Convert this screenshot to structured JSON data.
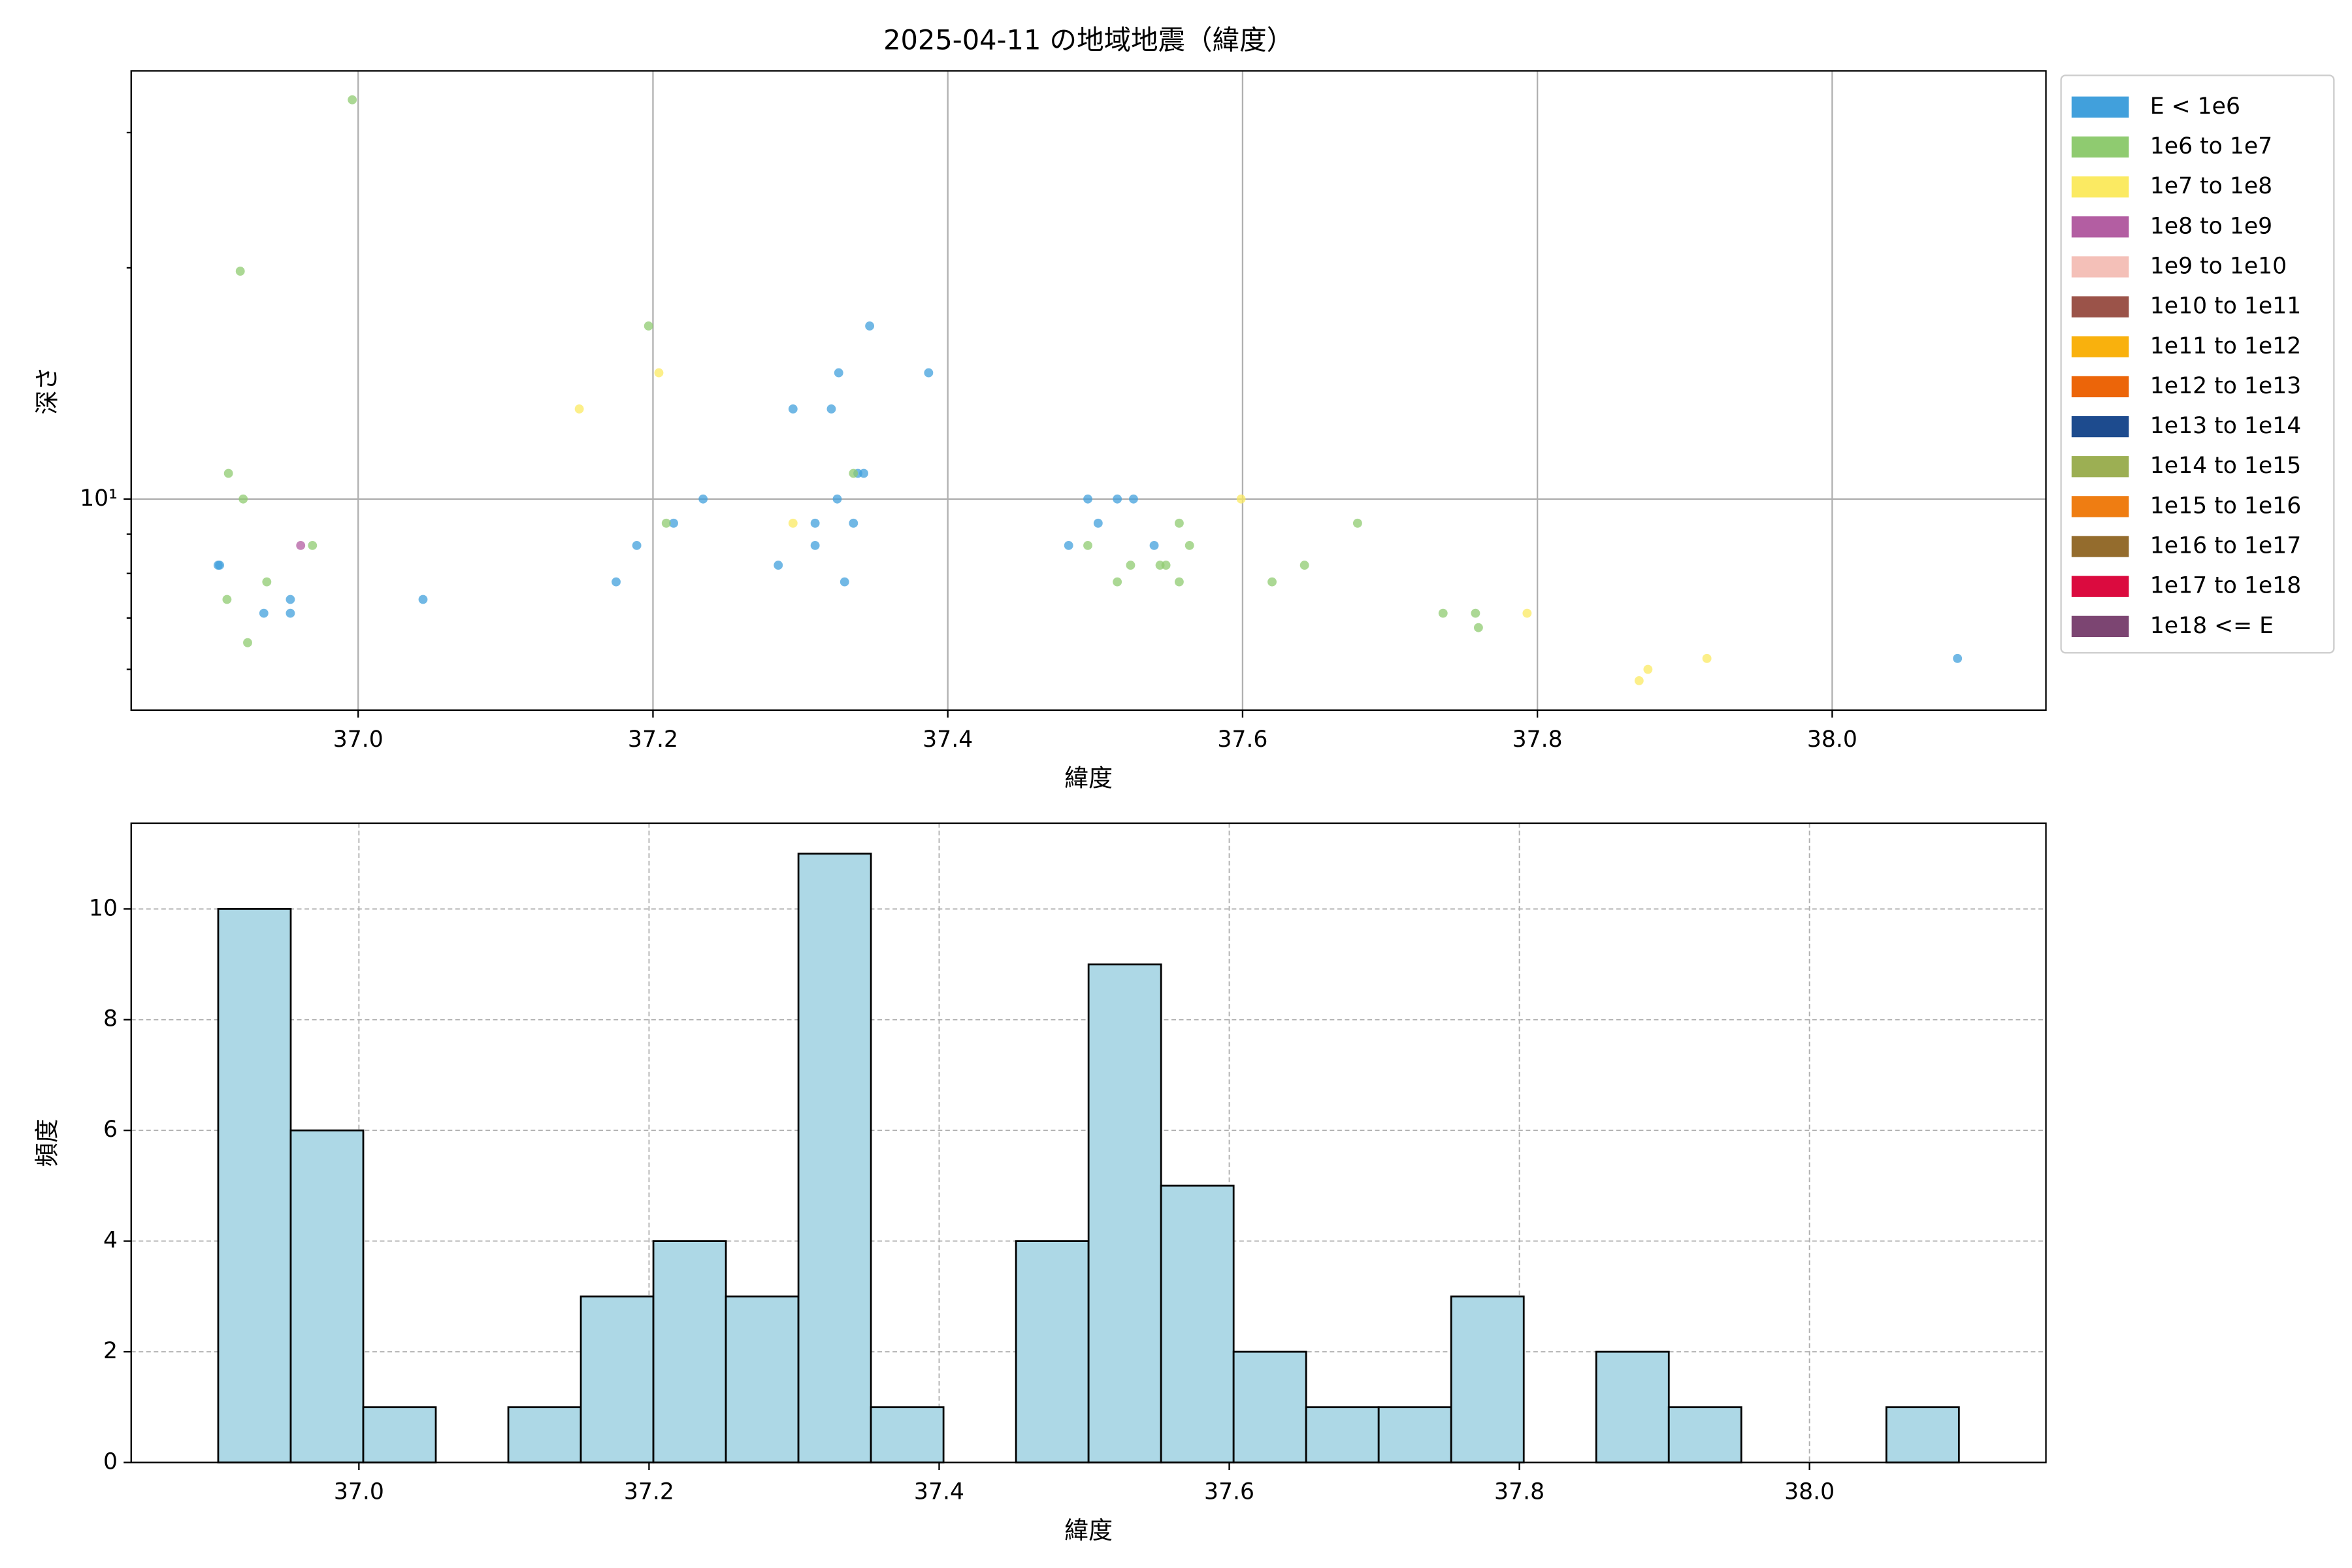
{
  "chart_data": [
    {
      "type": "scatter",
      "title": "2025-04-11 の地域地震（緯度）",
      "x_label": "緯度",
      "y_label": "深さ",
      "y_scale": "log",
      "grid": true,
      "legend": "outside right",
      "xlim": [
        36.846,
        38.145
      ],
      "ylim": [
        5.31,
        36.1
      ],
      "xticks": [
        {
          "value": 37,
          "label": "37.0"
        },
        37.2,
        37.4,
        37.6,
        37.8,
        {
          "value": 38,
          "label": "38.0"
        }
      ],
      "yticks": [
        {
          "value": 10,
          "label": "10¹"
        }
      ],
      "yminorticks": [
        6,
        7,
        8,
        9,
        20,
        30
      ],
      "series": [
        {
          "name": "E < 1e6",
          "color": "#41a0dc",
          "x": [
            36.905,
            36.906,
            36.936,
            36.954,
            36.954,
            37.044,
            37.175,
            37.189,
            37.214,
            37.234,
            37.285,
            37.295,
            37.31,
            37.31,
            37.321,
            37.325,
            37.326,
            37.33,
            37.336,
            37.339,
            37.343,
            37.347,
            37.387,
            37.482,
            37.495,
            37.502,
            37.515,
            37.526,
            37.54,
            38.085
          ],
          "values": [
            8.2,
            8.2,
            7.1,
            7.4,
            7.1,
            7.4,
            7.8,
            8.7,
            9.3,
            10.0,
            8.2,
            13.1,
            9.3,
            8.7,
            13.1,
            10.0,
            14.6,
            7.8,
            9.3,
            10.8,
            10.8,
            16.8,
            14.6,
            8.7,
            10.0,
            9.3,
            10.0,
            10.0,
            8.7,
            6.2
          ]
        },
        {
          "name": "1e6 to 1e7",
          "color": "#8fcb70",
          "x": [
            36.996,
            36.92,
            36.912,
            36.922,
            36.969,
            36.938,
            36.911,
            36.925,
            37.197,
            37.209,
            37.336,
            37.495,
            37.515,
            37.524,
            37.544,
            37.548,
            37.557,
            37.557,
            37.564,
            37.62,
            37.642,
            37.678,
            37.736,
            37.758,
            37.76
          ],
          "values": [
            33.1,
            19.8,
            10.8,
            10.0,
            8.7,
            7.8,
            7.4,
            6.5,
            16.8,
            9.3,
            10.8,
            8.7,
            7.8,
            8.2,
            8.2,
            8.2,
            9.3,
            7.8,
            8.7,
            7.8,
            8.2,
            9.3,
            7.1,
            7.1,
            6.8
          ]
        },
        {
          "name": "1e7 to 1e8",
          "color": "#fbea62",
          "x": [
            37.15,
            37.204,
            37.295,
            37.599,
            37.793,
            37.869,
            37.875,
            37.915
          ],
          "values": [
            13.1,
            14.6,
            9.3,
            10.0,
            7.1,
            5.8,
            6.0,
            6.2
          ]
        },
        {
          "name": "1e8 to 1e9",
          "color": "#b35ea2",
          "x": [
            36.961
          ],
          "values": [
            8.7
          ]
        },
        {
          "name": "1e9 to 1e10",
          "color": "#f4c0b8",
          "x": [],
          "values": []
        },
        {
          "name": "1e10 to 1e11",
          "color": "#9b5349",
          "x": [],
          "values": []
        },
        {
          "name": "1e11 to 1e12",
          "color": "#f9b10d",
          "x": [],
          "values": []
        },
        {
          "name": "1e12 to 1e13",
          "color": "#ec6509",
          "x": [],
          "values": []
        },
        {
          "name": "1e13 to 1e14",
          "color": "#1d4b8e",
          "x": [],
          "values": []
        },
        {
          "name": "1e14 to 1e15",
          "color": "#9caf53",
          "x": [],
          "values": []
        },
        {
          "name": "1e15 to 1e16",
          "color": "#ef7d12",
          "x": [],
          "values": []
        },
        {
          "name": "1e16 to 1e17",
          "color": "#946c2d",
          "x": [],
          "values": []
        },
        {
          "name": "1e17 to 1e18",
          "color": "#db0b3f",
          "x": [],
          "values": []
        },
        {
          "name": "1e18 <= E",
          "color": "#7c4572",
          "x": [],
          "values": []
        }
      ]
    },
    {
      "type": "histogram",
      "x_label": "緯度",
      "y_label": "頻度",
      "color": "#add8e6",
      "grid": true,
      "xlim": [
        36.843,
        38.163
      ],
      "ylim": [
        0,
        11.55
      ],
      "xticks": [
        {
          "value": 37,
          "label": "37.0"
        },
        37.2,
        37.4,
        37.6,
        37.8,
        {
          "value": 38,
          "label": "38.0"
        }
      ],
      "yticks": [
        0,
        2,
        4,
        6,
        8,
        10
      ],
      "bins": [
        36.903,
        36.953,
        37.003,
        37.053,
        37.103,
        37.153,
        37.203,
        37.253,
        37.303,
        37.353,
        37.403,
        37.453,
        37.503,
        37.553,
        37.603,
        37.653,
        37.703,
        37.753,
        37.803,
        37.853,
        37.903,
        37.953,
        38.003,
        38.053,
        38.103
      ],
      "values": [
        10,
        6,
        1,
        0,
        1,
        3,
        4,
        3,
        11,
        1,
        0,
        4,
        9,
        5,
        2,
        1,
        1,
        3,
        0,
        2,
        1,
        0,
        0,
        1
      ]
    }
  ]
}
